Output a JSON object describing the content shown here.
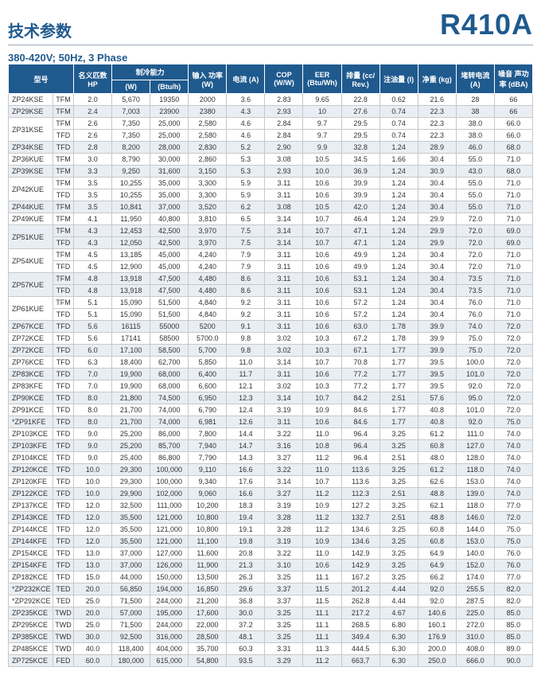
{
  "header": {
    "title_cn": "技术参数",
    "refrigerant": "R410A",
    "subtitle": "380-420V; 50Hz, 3 Phase"
  },
  "columns": {
    "model": "型号",
    "hp": "名义匹数\nHP",
    "cooling": "制冷能力",
    "cool_w": "(W)",
    "cool_btu": "(Btu/h)",
    "input": "输入\n功率\n(W)",
    "current": "电流\n(A)",
    "cop": "COP\n(W/W)",
    "eer": "EER\n(Btu/Wh)",
    "disp": "排量\n(cc/ Rev.)",
    "oil": "注油量\n(l)",
    "weight": "净重\n(kg)",
    "lra": "堵转电流\n(A)",
    "noise": "噪音\n声功率\n(dBA)"
  },
  "rows": [
    {
      "m": "ZP24KSE",
      "s": "TFM",
      "hp": "2.0",
      "w": "5,670",
      "btu": "19350",
      "in": "2000",
      "a": "3.6",
      "cop": "2.83",
      "eer": "9.65",
      "d": "22.8",
      "oil": "0.62",
      "kg": "21.6",
      "lra": "28",
      "db": "66"
    },
    {
      "m": "ZP29KSE",
      "s": "TFM",
      "hp": "2.4",
      "w": "7,003",
      "btu": "23900",
      "in": "2380",
      "a": "4.3",
      "cop": "2.93",
      "eer": "10",
      "d": "27.6",
      "oil": "0.74",
      "kg": "22.3",
      "lra": "38",
      "db": "66"
    },
    {
      "m": "ZP31KSE",
      "s": "TFM",
      "hp": "2.6",
      "w": "7,350",
      "btu": "25,000",
      "in": "2,580",
      "a": "4.6",
      "cop": "2.84",
      "eer": "9.7",
      "d": "29.5",
      "oil": "0.74",
      "kg": "22.3",
      "lra": "38.0",
      "db": "66.0",
      "span": 2
    },
    {
      "s": "TFD",
      "hp": "2.6",
      "w": "7,350",
      "btu": "25,000",
      "in": "2,580",
      "a": "4.6",
      "cop": "2.84",
      "eer": "9.7",
      "d": "29.5",
      "oil": "0.74",
      "kg": "22.3",
      "lra": "38.0",
      "db": "66.0"
    },
    {
      "m": "ZP34KSE",
      "s": "TFD",
      "hp": "2.8",
      "w": "8,200",
      "btu": "28,000",
      "in": "2,830",
      "a": "5.2",
      "cop": "2.90",
      "eer": "9.9",
      "d": "32.8",
      "oil": "1.24",
      "kg": "28.9",
      "lra": "46.0",
      "db": "68.0"
    },
    {
      "m": "ZP36KUE",
      "s": "TFM",
      "hp": "3.0",
      "w": "8,790",
      "btu": "30,000",
      "in": "2,860",
      "a": "5.3",
      "cop": "3.08",
      "eer": "10.5",
      "d": "34.5",
      "oil": "1.66",
      "kg": "30.4",
      "lra": "55.0",
      "db": "71.0"
    },
    {
      "m": "ZP39KSE",
      "s": "TFM",
      "hp": "3.3",
      "w": "9,250",
      "btu": "31,600",
      "in": "3,150",
      "a": "5.3",
      "cop": "2.93",
      "eer": "10.0",
      "d": "36.9",
      "oil": "1.24",
      "kg": "30.9",
      "lra": "43.0",
      "db": "68.0"
    },
    {
      "m": "ZP42KUE",
      "s": "TFM",
      "hp": "3.5",
      "w": "10,255",
      "btu": "35,000",
      "in": "3,300",
      "a": "5.9",
      "cop": "3.11",
      "eer": "10.6",
      "d": "39.9",
      "oil": "1.24",
      "kg": "30.4",
      "lra": "55.0",
      "db": "71.0",
      "span": 2
    },
    {
      "s": "TFD",
      "hp": "3.5",
      "w": "10,255",
      "btu": "35,000",
      "in": "3,300",
      "a": "5.9",
      "cop": "3.11",
      "eer": "10.6",
      "d": "39.9",
      "oil": "1.24",
      "kg": "30.4",
      "lra": "55.0",
      "db": "71.0"
    },
    {
      "m": "ZP44KUE",
      "s": "TFM",
      "hp": "3.5",
      "w": "10,841",
      "btu": "37,000",
      "in": "3,520",
      "a": "6.2",
      "cop": "3.08",
      "eer": "10.5",
      "d": "42.0",
      "oil": "1.24",
      "kg": "30.4",
      "lra": "55.0",
      "db": "71.0"
    },
    {
      "m": "ZP49KUE",
      "s": "TFM",
      "hp": "4.1",
      "w": "11,950",
      "btu": "40,800",
      "in": "3,810",
      "a": "6.5",
      "cop": "3.14",
      "eer": "10.7",
      "d": "46.4",
      "oil": "1.24",
      "kg": "29.9",
      "lra": "72.0",
      "db": "71.0"
    },
    {
      "m": "ZP51KUE",
      "s": "TFM",
      "hp": "4.3",
      "w": "12,453",
      "btu": "42,500",
      "in": "3,970",
      "a": "7.5",
      "cop": "3.14",
      "eer": "10.7",
      "d": "47.1",
      "oil": "1.24",
      "kg": "29.9",
      "lra": "72.0",
      "db": "69.0",
      "span": 2
    },
    {
      "s": "TFD",
      "hp": "4.3",
      "w": "12,050",
      "btu": "42,500",
      "in": "3,970",
      "a": "7.5",
      "cop": "3.14",
      "eer": "10.7",
      "d": "47.1",
      "oil": "1.24",
      "kg": "29.9",
      "lra": "72.0",
      "db": "69.0"
    },
    {
      "m": "ZP54KUE",
      "s": "TFM",
      "hp": "4.5",
      "w": "13,185",
      "btu": "45,000",
      "in": "4,240",
      "a": "7.9",
      "cop": "3.11",
      "eer": "10.6",
      "d": "49.9",
      "oil": "1.24",
      "kg": "30.4",
      "lra": "72.0",
      "db": "71.0",
      "span": 2
    },
    {
      "s": "TFD",
      "hp": "4.5",
      "w": "12,900",
      "btu": "45,000",
      "in": "4,240",
      "a": "7.9",
      "cop": "3.11",
      "eer": "10.6",
      "d": "49.9",
      "oil": "1.24",
      "kg": "30.4",
      "lra": "72.0",
      "db": "71.0"
    },
    {
      "m": "ZP57KUE",
      "s": "TFM",
      "hp": "4.8",
      "w": "13,918",
      "btu": "47,500",
      "in": "4,480",
      "a": "8.6",
      "cop": "3.11",
      "eer": "10.6",
      "d": "53.1",
      "oil": "1.24",
      "kg": "30.4",
      "lra": "73.5",
      "db": "71.0",
      "span": 2
    },
    {
      "s": "TFD",
      "hp": "4.8",
      "w": "13,918",
      "btu": "47,500",
      "in": "4,480",
      "a": "8.6",
      "cop": "3.11",
      "eer": "10.6",
      "d": "53.1",
      "oil": "1.24",
      "kg": "30.4",
      "lra": "73.5",
      "db": "71.0"
    },
    {
      "m": "ZP61KUE",
      "s": "TFM",
      "hp": "5.1",
      "w": "15,090",
      "btu": "51,500",
      "in": "4,840",
      "a": "9.2",
      "cop": "3.11",
      "eer": "10.6",
      "d": "57.2",
      "oil": "1.24",
      "kg": "30.4",
      "lra": "76.0",
      "db": "71.0",
      "span": 2
    },
    {
      "s": "TFD",
      "hp": "5.1",
      "w": "15,090",
      "btu": "51,500",
      "in": "4,840",
      "a": "9.2",
      "cop": "3.11",
      "eer": "10.6",
      "d": "57.2",
      "oil": "1.24",
      "kg": "30.4",
      "lra": "76.0",
      "db": "71.0"
    },
    {
      "m": "ZP67KCE",
      "s": "TFD",
      "hp": "5.6",
      "w": "16115",
      "btu": "55000",
      "in": "5200",
      "a": "9.1",
      "cop": "3.11",
      "eer": "10.6",
      "d": "63.0",
      "oil": "1.78",
      "kg": "39.9",
      "lra": "74.0",
      "db": "72.0"
    },
    {
      "m": "ZP72KCE",
      "s": "TFD",
      "hp": "5.6",
      "w": "17141",
      "btu": "58500",
      "in": "5700.0",
      "a": "9.8",
      "cop": "3.02",
      "eer": "10.3",
      "d": "67.2",
      "oil": "1.78",
      "kg": "39.9",
      "lra": "75.0",
      "db": "72.0"
    },
    {
      "m": "ZP72KCE",
      "s": "TFD",
      "hp": "6.0",
      "w": "17,100",
      "btu": "58,500",
      "in": "5,700",
      "a": "9.8",
      "cop": "3.02",
      "eer": "10.3",
      "d": "67.1",
      "oil": "1.77",
      "kg": "39.9",
      "lra": "75.0",
      "db": "72.0"
    },
    {
      "m": "ZP76KCE",
      "s": "TFD",
      "hp": "6.3",
      "w": "18,400",
      "btu": "62,700",
      "in": "5,850",
      "a": "11.0",
      "cop": "3.14",
      "eer": "10.7",
      "d": "70.8",
      "oil": "1.77",
      "kg": "39.5",
      "lra": "100.0",
      "db": "72.0"
    },
    {
      "m": "ZP83KCE",
      "s": "TFD",
      "hp": "7.0",
      "w": "19,900",
      "btu": "68,000",
      "in": "6,400",
      "a": "11.7",
      "cop": "3.11",
      "eer": "10.6",
      "d": "77.2",
      "oil": "1.77",
      "kg": "39.5",
      "lra": "101.0",
      "db": "72.0"
    },
    {
      "m": "ZP83KFE",
      "s": "TFD",
      "hp": "7.0",
      "w": "19,900",
      "btu": "68,000",
      "in": "6,600",
      "a": "12.1",
      "cop": "3.02",
      "eer": "10.3",
      "d": "77.2",
      "oil": "1.77",
      "kg": "39.5",
      "lra": "92.0",
      "db": "72.0"
    },
    {
      "m": "ZP90KCE",
      "s": "TFD",
      "hp": "8.0",
      "w": "21,800",
      "btu": "74,500",
      "in": "6,950",
      "a": "12.3",
      "cop": "3.14",
      "eer": "10.7",
      "d": "84.2",
      "oil": "2.51",
      "kg": "57.6",
      "lra": "95.0",
      "db": "72.0"
    },
    {
      "m": "ZP91KCE",
      "s": "TFD",
      "hp": "8.0",
      "w": "21,700",
      "btu": "74,000",
      "in": "6,790",
      "a": "12.4",
      "cop": "3.19",
      "eer": "10.9",
      "d": "84.6",
      "oil": "1.77",
      "kg": "40.8",
      "lra": "101.0",
      "db": "72.0"
    },
    {
      "m": "*ZP91KFE",
      "s": "TFD",
      "hp": "8.0",
      "w": "21,700",
      "btu": "74,000",
      "in": "6,981",
      "a": "12.6",
      "cop": "3.11",
      "eer": "10.6",
      "d": "84.6",
      "oil": "1.77",
      "kg": "40.8",
      "lra": "92.0",
      "db": "75.0"
    },
    {
      "m": "ZP103KCE",
      "s": "TFD",
      "hp": "9.0",
      "w": "25,200",
      "btu": "86,000",
      "in": "7,800",
      "a": "14.4",
      "cop": "3.22",
      "eer": "11.0",
      "d": "96.4",
      "oil": "3.25",
      "kg": "61.2",
      "lra": "111.0",
      "db": "74.0"
    },
    {
      "m": "ZP103KFE",
      "s": "TFD",
      "hp": "9.0",
      "w": "25,200",
      "btu": "85,700",
      "in": "7,940",
      "a": "14.7",
      "cop": "3.16",
      "eer": "10.8",
      "d": "96.4",
      "oil": "3.25",
      "kg": "60.8",
      "lra": "127.0",
      "db": "74.0"
    },
    {
      "m": "ZP104KCE",
      "s": "TFD",
      "hp": "9.0",
      "w": "25,400",
      "btu": "86,800",
      "in": "7,790",
      "a": "14.3",
      "cop": "3.27",
      "eer": "11.2",
      "d": "96.4",
      "oil": "2.51",
      "kg": "48.0",
      "lra": "128.0",
      "db": "74.0"
    },
    {
      "m": "ZP120KCE",
      "s": "TFD",
      "hp": "10.0",
      "w": "29,300",
      "btu": "100,000",
      "in": "9,110",
      "a": "16.6",
      "cop": "3.22",
      "eer": "11.0",
      "d": "113.6",
      "oil": "3.25",
      "kg": "61.2",
      "lra": "118.0",
      "db": "74.0"
    },
    {
      "m": "ZP120KFE",
      "s": "TFD",
      "hp": "10.0",
      "w": "29,300",
      "btu": "100,000",
      "in": "9,340",
      "a": "17.6",
      "cop": "3.14",
      "eer": "10.7",
      "d": "113.6",
      "oil": "3.25",
      "kg": "62.6",
      "lra": "153.0",
      "db": "74.0"
    },
    {
      "m": "ZP122KCE",
      "s": "TFD",
      "hp": "10.0",
      "w": "29,900",
      "btu": "102,000",
      "in": "9,060",
      "a": "16.6",
      "cop": "3.27",
      "eer": "11.2",
      "d": "112.3",
      "oil": "2.51",
      "kg": "48.8",
      "lra": "139.0",
      "db": "74.0"
    },
    {
      "m": "ZP137KCE",
      "s": "TFD",
      "hp": "12.0",
      "w": "32,500",
      "btu": "111,000",
      "in": "10,200",
      "a": "18.3",
      "cop": "3.19",
      "eer": "10.9",
      "d": "127.2",
      "oil": "3.25",
      "kg": "62.1",
      "lra": "118.0",
      "db": "77.0"
    },
    {
      "m": "ZP143KCE",
      "s": "TFD",
      "hp": "12.0",
      "w": "35,500",
      "btu": "121,000",
      "in": "10,800",
      "a": "19.4",
      "cop": "3.28",
      "eer": "11.2",
      "d": "132.7",
      "oil": "2.51",
      "kg": "48.8",
      "lra": "146.0",
      "db": "72.0"
    },
    {
      "m": "ZP144KCE",
      "s": "TFD",
      "hp": "12.0",
      "w": "35,500",
      "btu": "121,000",
      "in": "10,800",
      "a": "19.1",
      "cop": "3.28",
      "eer": "11.2",
      "d": "134.6",
      "oil": "3.25",
      "kg": "60.8",
      "lra": "144.0",
      "db": "75.0"
    },
    {
      "m": "ZP144KFE",
      "s": "TFD",
      "hp": "12.0",
      "w": "35,500",
      "btu": "121,000",
      "in": "11,100",
      "a": "19.8",
      "cop": "3.19",
      "eer": "10.9",
      "d": "134.6",
      "oil": "3.25",
      "kg": "60.8",
      "lra": "153.0",
      "db": "75.0"
    },
    {
      "m": "ZP154KCE",
      "s": "TFD",
      "hp": "13.0",
      "w": "37,000",
      "btu": "127,000",
      "in": "11,600",
      "a": "20.8",
      "cop": "3.22",
      "eer": "11.0",
      "d": "142.9",
      "oil": "3.25",
      "kg": "64.9",
      "lra": "140.0",
      "db": "76.0"
    },
    {
      "m": "ZP154KFE",
      "s": "TFD",
      "hp": "13.0",
      "w": "37,000",
      "btu": "126,000",
      "in": "11,900",
      "a": "21.3",
      "cop": "3.10",
      "eer": "10.6",
      "d": "142.9",
      "oil": "3.25",
      "kg": "64.9",
      "lra": "152.0",
      "db": "76.0"
    },
    {
      "m": "ZP182KCE",
      "s": "TFD",
      "hp": "15.0",
      "w": "44,000",
      "btu": "150,000",
      "in": "13,500",
      "a": "26.3",
      "cop": "3.25",
      "eer": "11.1",
      "d": "167.2",
      "oil": "3.25",
      "kg": "66.2",
      "lra": "174.0",
      "db": "77.0"
    },
    {
      "m": "*ZP232KCE",
      "s": "TED",
      "hp": "20.0",
      "w": "56,850",
      "btu": "194,000",
      "in": "16,850",
      "a": "29.6",
      "cop": "3.37",
      "eer": "11.5",
      "d": "201.2",
      "oil": "4.44",
      "kg": "92.0",
      "lra": "255.5",
      "db": "82.0"
    },
    {
      "m": "*ZP292KCE",
      "s": "TED",
      "hp": "25.0",
      "w": "71,500",
      "btu": "244,000",
      "in": "21,200",
      "a": "36.8",
      "cop": "3.37",
      "eer": "11.5",
      "d": "262.8",
      "oil": "4.44",
      "kg": "92.0",
      "lra": "287.5",
      "db": "82.0"
    },
    {
      "m": "ZP235KCE",
      "s": "TWD",
      "hp": "20.0",
      "w": "57,000",
      "btu": "195,000",
      "in": "17,600",
      "a": "30.0",
      "cop": "3.25",
      "eer": "11.1",
      "d": "217.2",
      "oil": "4.67",
      "kg": "140.6",
      "lra": "225.0",
      "db": "85.0"
    },
    {
      "m": "ZP295KCE",
      "s": "TWD",
      "hp": "25.0",
      "w": "71,500",
      "btu": "244,000",
      "in": "22,000",
      "a": "37.2",
      "cop": "3.25",
      "eer": "11.1",
      "d": "268.5",
      "oil": "6.80",
      "kg": "160.1",
      "lra": "272.0",
      "db": "85.0"
    },
    {
      "m": "ZP385KCE",
      "s": "TWD",
      "hp": "30.0",
      "w": "92,500",
      "btu": "316,000",
      "in": "28,500",
      "a": "48.1",
      "cop": "3.25",
      "eer": "11.1",
      "d": "349.4",
      "oil": "6.30",
      "kg": "176.9",
      "lra": "310.0",
      "db": "85.0"
    },
    {
      "m": "ZP485KCE",
      "s": "TWD",
      "hp": "40.0",
      "w": "118,400",
      "btu": "404,000",
      "in": "35,700",
      "a": "60.3",
      "cop": "3.31",
      "eer": "11.3",
      "d": "444.5",
      "oil": "6.30",
      "kg": "200.0",
      "lra": "408.0",
      "db": "89.0"
    },
    {
      "m": "ZP725KCE",
      "s": "FED",
      "hp": "60.0",
      "w": "180,000",
      "btu": "615,000",
      "in": "54,800",
      "a": "93.5",
      "cop": "3.29",
      "eer": "11.2",
      "d": "663,7",
      "oil": "6.30",
      "kg": "250.0",
      "lra": "666.0",
      "db": "90.0"
    }
  ]
}
